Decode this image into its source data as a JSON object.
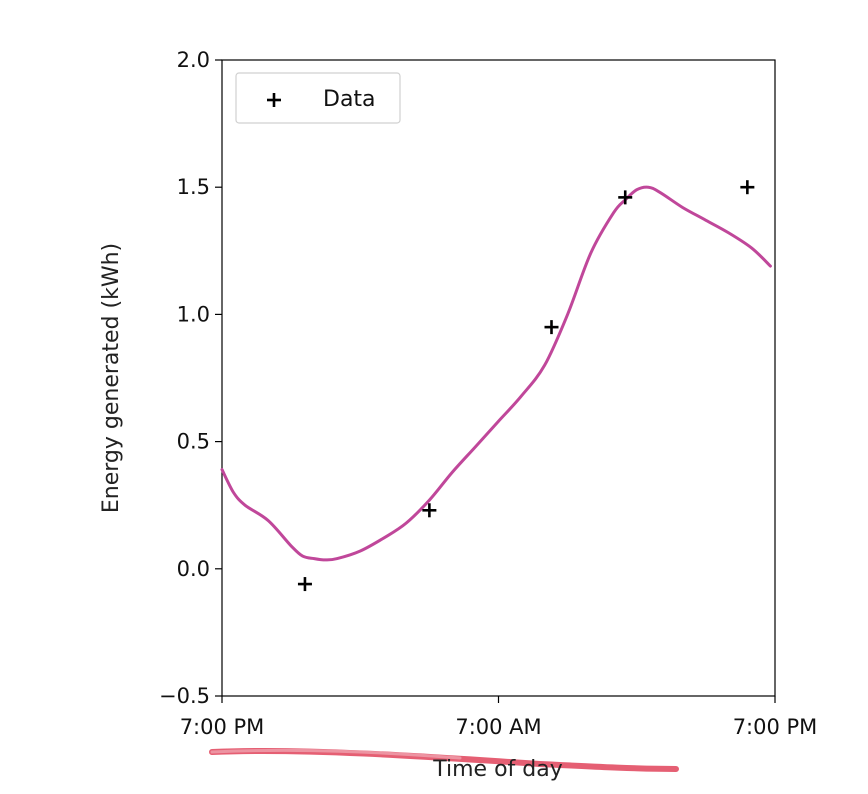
{
  "chart_data": {
    "type": "line",
    "title": "",
    "xlabel": "Time of day",
    "ylabel": "Energy generated (kWh)",
    "x_tick_labels": [
      "7:00 PM",
      "7:00 AM",
      "7:00 PM"
    ],
    "y_ticks": [
      -0.5,
      0.0,
      0.5,
      1.0,
      1.5,
      2.0
    ],
    "y_tick_labels": [
      "−0.5",
      "0.0",
      "0.5",
      "1.0",
      "1.5",
      "2.0"
    ],
    "xlim": [
      0,
      24
    ],
    "ylim": [
      -0.5,
      2.0
    ],
    "legend": {
      "position": "top-left",
      "entries": [
        "Data"
      ]
    },
    "grid": false,
    "series": [
      {
        "name": "Data",
        "kind": "scatter",
        "marker": "+",
        "color": "#000000",
        "x": [
          3.6,
          9.0,
          14.3,
          17.5,
          22.8
        ],
        "y": [
          -0.06,
          0.23,
          0.95,
          1.46,
          1.5
        ]
      },
      {
        "kind": "line",
        "color": "#c0479a",
        "x": [
          0,
          0.5,
          1,
          2,
          3,
          3.5,
          4,
          4.5,
          5,
          6,
          7,
          8,
          9,
          10,
          11,
          12,
          13,
          14,
          15,
          16,
          17,
          17.5,
          18,
          18.5,
          19,
          20,
          21,
          22,
          23,
          23.8
        ],
        "y": [
          0.39,
          0.3,
          0.25,
          0.19,
          0.09,
          0.05,
          0.04,
          0.035,
          0.04,
          0.07,
          0.12,
          0.18,
          0.27,
          0.38,
          0.48,
          0.58,
          0.68,
          0.8,
          1.0,
          1.24,
          1.4,
          1.45,
          1.49,
          1.5,
          1.48,
          1.42,
          1.37,
          1.32,
          1.26,
          1.19
        ]
      }
    ]
  },
  "annotations": {
    "xlabel_stroke_color": "#e0435a"
  }
}
